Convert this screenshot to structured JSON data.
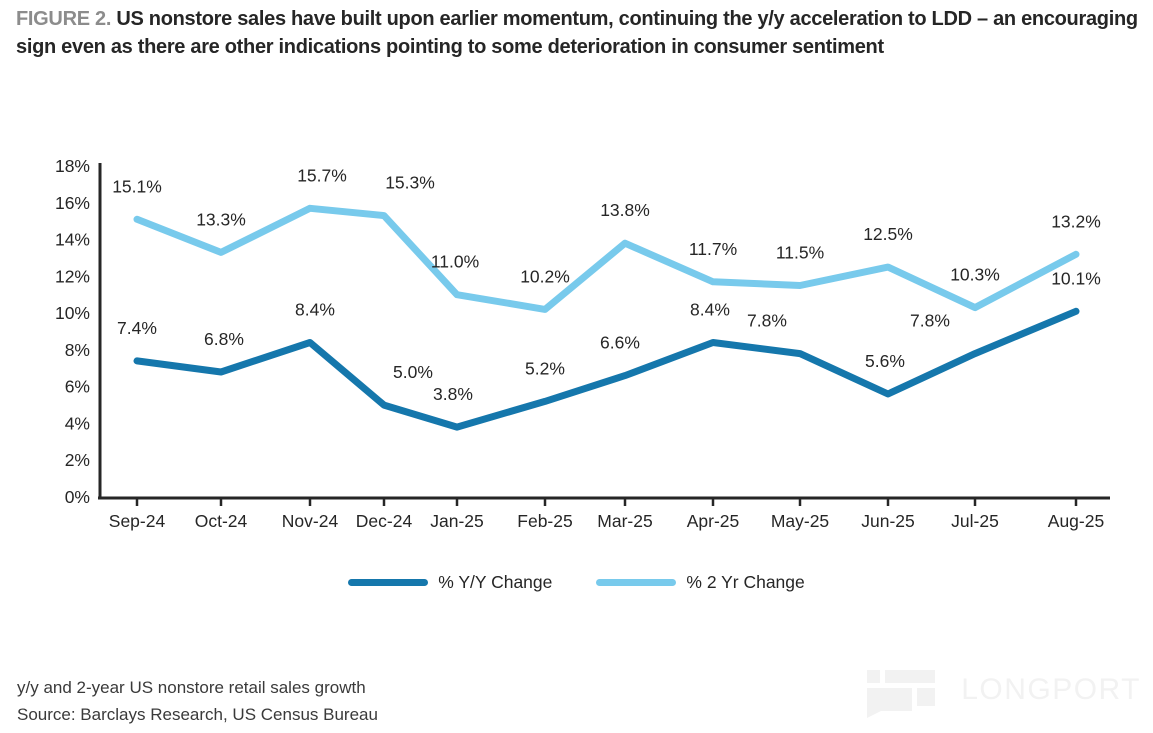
{
  "header": {
    "figure_label": "FIGURE 2.",
    "title": "US nonstore sales have built upon earlier momentum, continuing the y/y acceleration to LDD – an encouraging sign even as there are other indications pointing to some deterioration in consumer sentiment"
  },
  "chart_data": {
    "type": "line",
    "categories": [
      "Sep-24",
      "Oct-24",
      "Nov-24",
      "Dec-24",
      "Jan-25",
      "Feb-25",
      "Mar-25",
      "Apr-25",
      "May-25",
      "Jun-25",
      "Jul-25",
      "Aug-25"
    ],
    "series": [
      {
        "name": "% Y/Y Change",
        "color": "#1577AC",
        "values": [
          7.4,
          6.8,
          8.4,
          5.0,
          3.8,
          5.2,
          6.6,
          8.4,
          7.8,
          5.6,
          7.8,
          10.1
        ]
      },
      {
        "name": "% 2 Yr Change",
        "color": "#78CAEC",
        "values": [
          15.1,
          13.3,
          15.7,
          15.3,
          11.0,
          10.2,
          13.8,
          11.7,
          11.5,
          12.5,
          10.3,
          13.2
        ]
      }
    ],
    "ylim": [
      0,
      18
    ],
    "y_tick_step": 2,
    "y_tick_suffix": "%",
    "data_label_decimals": 1,
    "grid": false,
    "legend_position": "bottom"
  },
  "footer": {
    "caption": "y/y and 2-year US nonstore retail sales growth",
    "source": "Source: Barclays Research, US Census Bureau"
  },
  "watermark": {
    "text": "LONGPORT"
  }
}
